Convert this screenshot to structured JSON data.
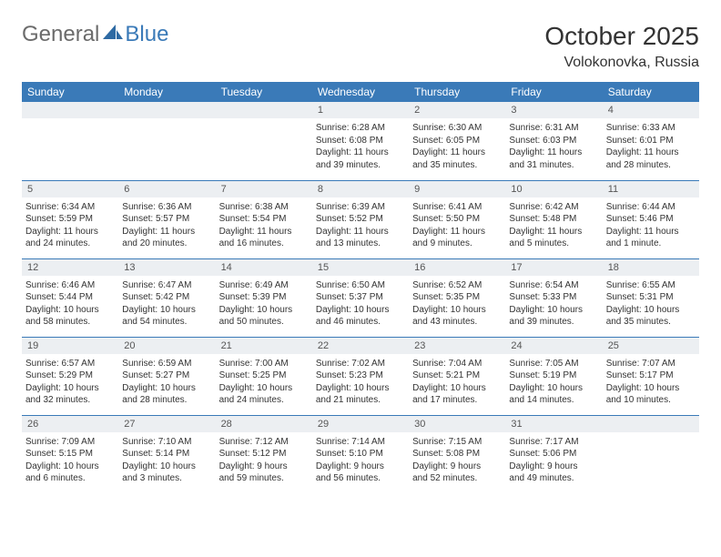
{
  "logo": {
    "general": "General",
    "blue": "Blue"
  },
  "header": {
    "title": "October 2025",
    "location": "Volokonovka, Russia"
  },
  "colors": {
    "headerBg": "#3a7ab8",
    "headerText": "#ffffff",
    "dayNumBg": "#eceff2",
    "dayNumText": "#555555",
    "bodyText": "#333333",
    "borderColor": "#3a7ab8"
  },
  "weekdays": [
    "Sunday",
    "Monday",
    "Tuesday",
    "Wednesday",
    "Thursday",
    "Friday",
    "Saturday"
  ],
  "weeks": [
    [
      null,
      null,
      null,
      {
        "n": "1",
        "sr": "Sunrise: 6:28 AM",
        "ss": "Sunset: 6:08 PM",
        "d1": "Daylight: 11 hours",
        "d2": "and 39 minutes."
      },
      {
        "n": "2",
        "sr": "Sunrise: 6:30 AM",
        "ss": "Sunset: 6:05 PM",
        "d1": "Daylight: 11 hours",
        "d2": "and 35 minutes."
      },
      {
        "n": "3",
        "sr": "Sunrise: 6:31 AM",
        "ss": "Sunset: 6:03 PM",
        "d1": "Daylight: 11 hours",
        "d2": "and 31 minutes."
      },
      {
        "n": "4",
        "sr": "Sunrise: 6:33 AM",
        "ss": "Sunset: 6:01 PM",
        "d1": "Daylight: 11 hours",
        "d2": "and 28 minutes."
      }
    ],
    [
      {
        "n": "5",
        "sr": "Sunrise: 6:34 AM",
        "ss": "Sunset: 5:59 PM",
        "d1": "Daylight: 11 hours",
        "d2": "and 24 minutes."
      },
      {
        "n": "6",
        "sr": "Sunrise: 6:36 AM",
        "ss": "Sunset: 5:57 PM",
        "d1": "Daylight: 11 hours",
        "d2": "and 20 minutes."
      },
      {
        "n": "7",
        "sr": "Sunrise: 6:38 AM",
        "ss": "Sunset: 5:54 PM",
        "d1": "Daylight: 11 hours",
        "d2": "and 16 minutes."
      },
      {
        "n": "8",
        "sr": "Sunrise: 6:39 AM",
        "ss": "Sunset: 5:52 PM",
        "d1": "Daylight: 11 hours",
        "d2": "and 13 minutes."
      },
      {
        "n": "9",
        "sr": "Sunrise: 6:41 AM",
        "ss": "Sunset: 5:50 PM",
        "d1": "Daylight: 11 hours",
        "d2": "and 9 minutes."
      },
      {
        "n": "10",
        "sr": "Sunrise: 6:42 AM",
        "ss": "Sunset: 5:48 PM",
        "d1": "Daylight: 11 hours",
        "d2": "and 5 minutes."
      },
      {
        "n": "11",
        "sr": "Sunrise: 6:44 AM",
        "ss": "Sunset: 5:46 PM",
        "d1": "Daylight: 11 hours",
        "d2": "and 1 minute."
      }
    ],
    [
      {
        "n": "12",
        "sr": "Sunrise: 6:46 AM",
        "ss": "Sunset: 5:44 PM",
        "d1": "Daylight: 10 hours",
        "d2": "and 58 minutes."
      },
      {
        "n": "13",
        "sr": "Sunrise: 6:47 AM",
        "ss": "Sunset: 5:42 PM",
        "d1": "Daylight: 10 hours",
        "d2": "and 54 minutes."
      },
      {
        "n": "14",
        "sr": "Sunrise: 6:49 AM",
        "ss": "Sunset: 5:39 PM",
        "d1": "Daylight: 10 hours",
        "d2": "and 50 minutes."
      },
      {
        "n": "15",
        "sr": "Sunrise: 6:50 AM",
        "ss": "Sunset: 5:37 PM",
        "d1": "Daylight: 10 hours",
        "d2": "and 46 minutes."
      },
      {
        "n": "16",
        "sr": "Sunrise: 6:52 AM",
        "ss": "Sunset: 5:35 PM",
        "d1": "Daylight: 10 hours",
        "d2": "and 43 minutes."
      },
      {
        "n": "17",
        "sr": "Sunrise: 6:54 AM",
        "ss": "Sunset: 5:33 PM",
        "d1": "Daylight: 10 hours",
        "d2": "and 39 minutes."
      },
      {
        "n": "18",
        "sr": "Sunrise: 6:55 AM",
        "ss": "Sunset: 5:31 PM",
        "d1": "Daylight: 10 hours",
        "d2": "and 35 minutes."
      }
    ],
    [
      {
        "n": "19",
        "sr": "Sunrise: 6:57 AM",
        "ss": "Sunset: 5:29 PM",
        "d1": "Daylight: 10 hours",
        "d2": "and 32 minutes."
      },
      {
        "n": "20",
        "sr": "Sunrise: 6:59 AM",
        "ss": "Sunset: 5:27 PM",
        "d1": "Daylight: 10 hours",
        "d2": "and 28 minutes."
      },
      {
        "n": "21",
        "sr": "Sunrise: 7:00 AM",
        "ss": "Sunset: 5:25 PM",
        "d1": "Daylight: 10 hours",
        "d2": "and 24 minutes."
      },
      {
        "n": "22",
        "sr": "Sunrise: 7:02 AM",
        "ss": "Sunset: 5:23 PM",
        "d1": "Daylight: 10 hours",
        "d2": "and 21 minutes."
      },
      {
        "n": "23",
        "sr": "Sunrise: 7:04 AM",
        "ss": "Sunset: 5:21 PM",
        "d1": "Daylight: 10 hours",
        "d2": "and 17 minutes."
      },
      {
        "n": "24",
        "sr": "Sunrise: 7:05 AM",
        "ss": "Sunset: 5:19 PM",
        "d1": "Daylight: 10 hours",
        "d2": "and 14 minutes."
      },
      {
        "n": "25",
        "sr": "Sunrise: 7:07 AM",
        "ss": "Sunset: 5:17 PM",
        "d1": "Daylight: 10 hours",
        "d2": "and 10 minutes."
      }
    ],
    [
      {
        "n": "26",
        "sr": "Sunrise: 7:09 AM",
        "ss": "Sunset: 5:15 PM",
        "d1": "Daylight: 10 hours",
        "d2": "and 6 minutes."
      },
      {
        "n": "27",
        "sr": "Sunrise: 7:10 AM",
        "ss": "Sunset: 5:14 PM",
        "d1": "Daylight: 10 hours",
        "d2": "and 3 minutes."
      },
      {
        "n": "28",
        "sr": "Sunrise: 7:12 AM",
        "ss": "Sunset: 5:12 PM",
        "d1": "Daylight: 9 hours",
        "d2": "and 59 minutes."
      },
      {
        "n": "29",
        "sr": "Sunrise: 7:14 AM",
        "ss": "Sunset: 5:10 PM",
        "d1": "Daylight: 9 hours",
        "d2": "and 56 minutes."
      },
      {
        "n": "30",
        "sr": "Sunrise: 7:15 AM",
        "ss": "Sunset: 5:08 PM",
        "d1": "Daylight: 9 hours",
        "d2": "and 52 minutes."
      },
      {
        "n": "31",
        "sr": "Sunrise: 7:17 AM",
        "ss": "Sunset: 5:06 PM",
        "d1": "Daylight: 9 hours",
        "d2": "and 49 minutes."
      },
      null
    ]
  ]
}
